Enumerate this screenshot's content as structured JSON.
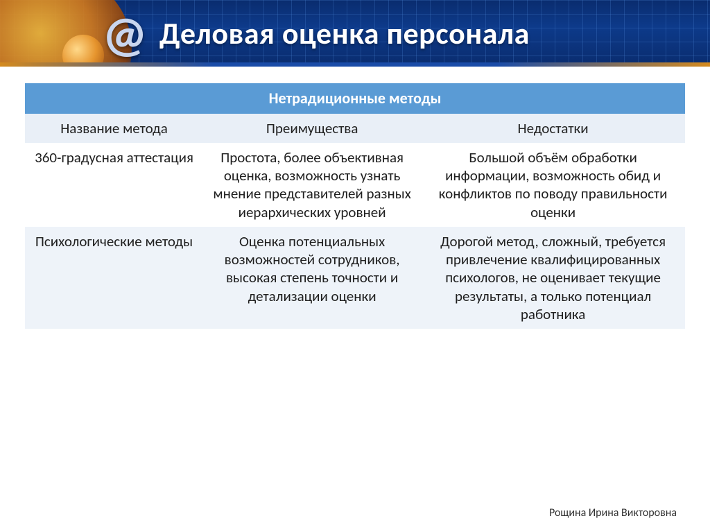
{
  "header": {
    "title": "Деловая оценка персонала",
    "icon_glyph": "@",
    "title_color": "#ffffff",
    "title_fontsize": 44,
    "bg_gradient_top": "#0a2c6e",
    "bg_gradient_mid": "#0d3a8a"
  },
  "table": {
    "title": "Нетрадиционные методы",
    "title_bg": "#5a9bd5",
    "title_color": "#ffffff",
    "header_bg": "#e9eff7",
    "row_alt_bg": "#eef3f9",
    "row_bg": "#ffffff",
    "text_color": "#202020",
    "fontsize": 21,
    "columns": [
      {
        "label": "Название метода",
        "width_pct": 27
      },
      {
        "label": "Преимущества",
        "width_pct": 33
      },
      {
        "label": "Недостатки",
        "width_pct": 40
      }
    ],
    "rows": [
      {
        "name": "360-градусная аттестация",
        "pros": "Простота, более объективная оценка, возможность узнать мнение представителей разных иерархических уровней",
        "cons": "Большой объём обработки информации, возможность обид и конфликтов по поводу правильности оценки"
      },
      {
        "name": "Психологические методы",
        "pros": "Оценка потенциальных возможностей сотрудников, высокая степень точности и детализации оценки",
        "cons": "Дорогой метод, сложный, требуется привлечение квалифицированных психологов, не оценивает текущие результаты, а только потенциал работника"
      }
    ]
  },
  "footer": {
    "author": "Рощина Ирина Викторовна",
    "fontsize": 16,
    "color": "#333333"
  }
}
